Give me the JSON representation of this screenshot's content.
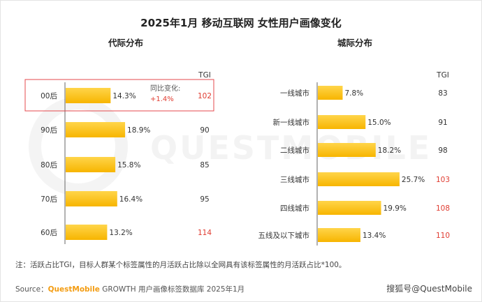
{
  "title": "2025年1月 移动互联网 女性用户画像变化",
  "colors": {
    "bar_top": "#FFD54A",
    "bar_bottom": "#F7B500",
    "highlight_red": "#E03C31",
    "box_red": "#E5484D",
    "text": "#333333",
    "axis": "#666666"
  },
  "chart_data": [
    {
      "type": "bar",
      "orientation": "horizontal",
      "title": "代际分布",
      "categories": [
        "00后",
        "90后",
        "80后",
        "70后",
        "60后"
      ],
      "values": [
        14.3,
        18.9,
        15.8,
        16.4,
        13.2
      ],
      "value_labels": [
        "14.3%",
        "18.9%",
        "15.8%",
        "16.4%",
        "13.2%"
      ],
      "tgi_header": "TGI",
      "tgi": [
        102,
        90,
        85,
        95,
        114
      ],
      "tgi_highlight": [
        true,
        false,
        false,
        false,
        true
      ],
      "annotation": {
        "category": "00后",
        "text_line1": "同比变化:",
        "text_line2": "+1.4%"
      },
      "grid": false
    },
    {
      "type": "bar",
      "orientation": "horizontal",
      "title": "城际分布",
      "categories": [
        "一线城市",
        "新一线城市",
        "二线城市",
        "三线城市",
        "四线城市",
        "五线及以下城市"
      ],
      "values": [
        7.8,
        15.0,
        18.2,
        25.7,
        19.9,
        13.4
      ],
      "value_labels": [
        "7.8%",
        "15.0%",
        "18.2%",
        "25.7%",
        "19.9%",
        "13.4%"
      ],
      "tgi_header": "TGI",
      "tgi": [
        83,
        91,
        98,
        103,
        108,
        110
      ],
      "tgi_highlight": [
        false,
        false,
        false,
        true,
        true,
        true
      ],
      "grid": false
    }
  ],
  "watermark": "QUESTMOBILE",
  "note": "注：活跃占比TGI，目标人群某个标签属性的月活跃占比除以全网具有该标签属性的月活跃占比*100。",
  "source": {
    "label": "Source：",
    "brand": "QuestMobile",
    "rest": " GROWTH 用户画像标签数据库 2025年1月"
  },
  "credit": "搜狐号@QuestMobile"
}
